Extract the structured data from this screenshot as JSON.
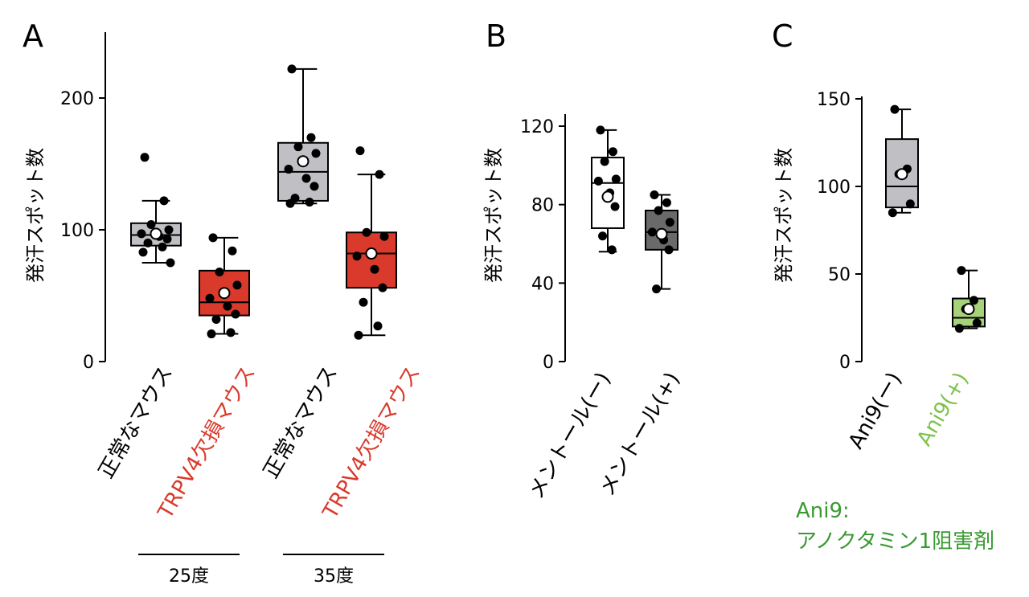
{
  "chart_data": [
    {
      "panel": "A",
      "type": "box",
      "ylabel": "発汗スポット数",
      "ylim": [
        0,
        250
      ],
      "yticks": [
        0,
        100,
        200
      ],
      "categories": [
        "正常なマウス",
        "TRPV4欠損マウス",
        "正常なマウス",
        "TRPV4欠損マウス"
      ],
      "category_colors": [
        "#000000",
        "#d93a2b",
        "#000000",
        "#d93a2b"
      ],
      "groups": [
        {
          "label": "25度",
          "categories": [
            0,
            1
          ]
        },
        {
          "label": "35度",
          "categories": [
            2,
            3
          ]
        }
      ],
      "boxes": [
        {
          "fill": "#c0c0c4",
          "whisker_low": 75,
          "q1": 88,
          "median": 96,
          "q3": 105,
          "whisker_high": 122,
          "mean": 97,
          "points": [
            155,
            122,
            104,
            100,
            97,
            95,
            93,
            90,
            87,
            83,
            75
          ]
        },
        {
          "fill": "#d93a2b",
          "whisker_low": 21,
          "q1": 35,
          "median": 45,
          "q3": 69,
          "whisker_high": 94,
          "mean": 52,
          "points": [
            94,
            84,
            68,
            58,
            48,
            42,
            36,
            32,
            22,
            21
          ]
        },
        {
          "fill": "#c0c0c4",
          "whisker_low": 120,
          "q1": 122,
          "median": 144,
          "q3": 166,
          "whisker_high": 222,
          "mean": 152,
          "points": [
            222,
            170,
            163,
            158,
            146,
            139,
            133,
            124,
            121,
            120
          ]
        },
        {
          "fill": "#d93a2b",
          "whisker_low": 20,
          "q1": 56,
          "median": 82,
          "q3": 98,
          "whisker_high": 142,
          "mean": 82,
          "points": [
            160,
            142,
            98,
            95,
            80,
            70,
            56,
            45,
            27,
            20
          ]
        }
      ]
    },
    {
      "panel": "B",
      "type": "box",
      "ylabel": "発汗スポット数",
      "ylim": [
        0,
        125
      ],
      "yticks": [
        0,
        40,
        80,
        120
      ],
      "categories": [
        "メントール(ー)",
        "メントール(+)"
      ],
      "category_colors": [
        "#000000",
        "#000000"
      ],
      "boxes": [
        {
          "fill": "#ffffff",
          "whisker_low": 56,
          "q1": 68,
          "median": 91,
          "q3": 104,
          "whisker_high": 118,
          "mean": 84,
          "points": [
            118,
            107,
            102,
            93,
            92,
            86,
            79,
            64,
            57
          ]
        },
        {
          "fill": "#6a6a6a",
          "whisker_low": 37,
          "q1": 57,
          "median": 66,
          "q3": 77,
          "whisker_high": 85,
          "mean": 65,
          "points": [
            85,
            81,
            77,
            71,
            66,
            62,
            57,
            37
          ]
        }
      ]
    },
    {
      "panel": "C",
      "type": "box",
      "ylabel": "発汗スポット数",
      "ylim": [
        0,
        150
      ],
      "yticks": [
        0,
        50,
        100,
        150
      ],
      "categories": [
        "Ani9(ー)",
        "Ani9(+)"
      ],
      "category_colors": [
        "#000000",
        "#7fc24b"
      ],
      "boxes": [
        {
          "fill": "#c0c0c4",
          "whisker_low": 85,
          "q1": 88,
          "median": 100,
          "q3": 127,
          "whisker_high": 144,
          "mean": 107,
          "points": [
            144,
            110,
            107,
            90,
            85
          ]
        },
        {
          "fill": "#a8d27a",
          "whisker_low": 19,
          "q1": 20,
          "median": 25,
          "q3": 36,
          "whisker_high": 52,
          "mean": 30,
          "points": [
            52,
            35,
            30,
            22,
            19
          ]
        }
      ],
      "note": [
        "Ani9:",
        "アノクタミン1阻害剤"
      ]
    }
  ]
}
